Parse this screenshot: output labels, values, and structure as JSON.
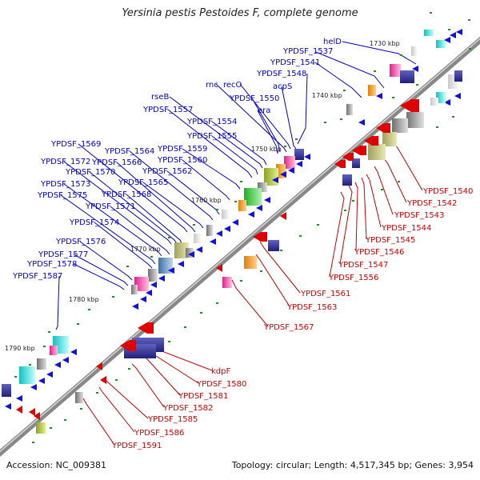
{
  "title": "Yersinia pestis Pestoides F, complete genome",
  "footer": {
    "accession": "Accession: NC_009381",
    "summary": "Topology: circular; Length: 4,517,345 bp; Genes: 3,954"
  },
  "colors": {
    "forward_label": "#0000cc",
    "reverse_label": "#cc0000",
    "backbone": "#888888",
    "tick": "#2a8a2a"
  },
  "kbp_markers": [
    "1730 kbp",
    "1740 kbp",
    "1750 kbp",
    "1760 kbp",
    "1770 kbp",
    "1780 kbp",
    "1790 kbp"
  ],
  "forward_labels": [
    "helD",
    "YPDSF_1537",
    "YPDSF_1541",
    "YPDSF_1548",
    "rnc",
    "recO",
    "acpS",
    "rseB",
    "YPDSF_1550",
    "YPDSF_1557",
    "era",
    "YPDSF_1554",
    "YPDSF_1555",
    "YPDSF_1569",
    "YPDSF_1564",
    "YPDSF_1559",
    "YPDSF_1572",
    "YPDSF_1566",
    "YPDSF_1560",
    "YPDSF_1570",
    "YPDSF_1562",
    "YPDSF_1573",
    "YPDSF_1565",
    "YPDSF_1575",
    "YPDSF_1568",
    "YPDSF_1571",
    "YPDSF_1574",
    "YPDSF_1576",
    "YPDSF_1577",
    "YPDSF_1578",
    "YPDSF_1587"
  ],
  "reverse_labels": [
    "YPDSF_1540",
    "YPDSF_1542",
    "YPDSF_1543",
    "YPDSF_1544",
    "YPDSF_1545",
    "YPDSF_1546",
    "YPDSF_1547",
    "YPDSF_1556",
    "YPDSF_1561",
    "YPDSF_1563",
    "YPDSF_1567",
    "kdpF",
    "YPDSF_1580",
    "YPDSF_1581",
    "YPDSF_1582",
    "YPDSF_1585",
    "YPDSF_1586",
    "YPDSF_1591"
  ]
}
